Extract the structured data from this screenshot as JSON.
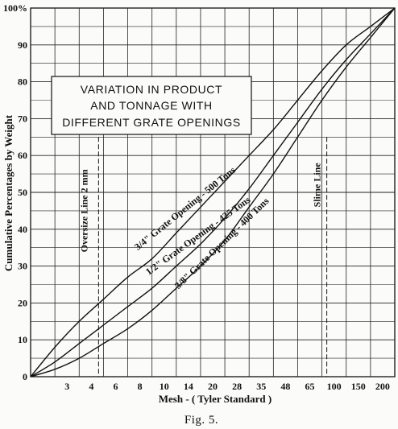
{
  "chart_data": {
    "type": "line",
    "title_lines": [
      "VARIATION IN PRODUCT",
      "AND TONNAGE WITH",
      "DIFFERENT GRATE OPENINGS"
    ],
    "xlabel": "Mesh - ( Tyler Standard )",
    "ylabel": "Cumulative Percentages by Weight",
    "caption": "Fig. 5.",
    "x_ticks": [
      "3",
      "4",
      "6",
      "8",
      "10",
      "14",
      "20",
      "28",
      "35",
      "48",
      "65",
      "100",
      "150",
      "200"
    ],
    "y_ticks": [
      "0",
      "10",
      "20",
      "30",
      "40",
      "50",
      "60",
      "70",
      "80",
      "90",
      "100%"
    ],
    "ylim": [
      0,
      100
    ],
    "grid": true,
    "x_positions": [
      0,
      1,
      2,
      3,
      4,
      5,
      6,
      7,
      8,
      9,
      10,
      11,
      12,
      13,
      14,
      15
    ],
    "series": [
      {
        "name": "3/4\" Grate Opening - 500 Tons",
        "values": [
          0,
          8,
          15,
          21,
          27,
          32,
          39,
          46,
          53,
          60,
          67,
          75,
          83,
          90,
          95,
          100
        ]
      },
      {
        "name": "1/2\" Grate Opening - 425 Tons",
        "values": [
          0,
          4,
          9,
          14,
          19,
          24,
          30,
          36,
          43,
          51,
          60,
          69,
          78,
          86,
          93,
          100
        ]
      },
      {
        "name": "3/8\" Grate Opening - 400 Tons",
        "values": [
          0,
          2,
          5,
          9,
          13,
          18,
          24,
          30,
          37,
          46,
          55,
          65,
          75,
          84,
          92,
          100
        ]
      }
    ],
    "annotations": [
      {
        "label": "Oversize Line 2 mm",
        "x": 2.8
      },
      {
        "label": "Slime Line",
        "x": 12.2
      }
    ]
  }
}
